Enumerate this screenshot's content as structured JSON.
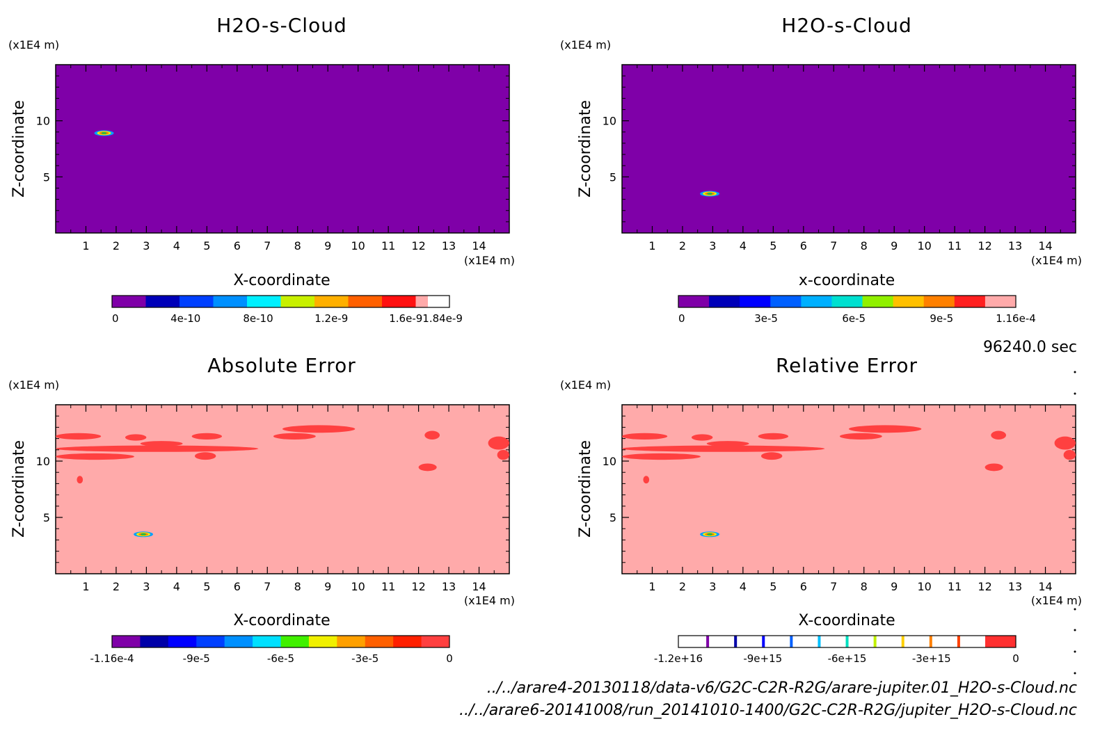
{
  "chart_data": [
    {
      "type": "heatmap",
      "title": "H2O-s-Cloud",
      "xlabel": "X-coordinate",
      "ylabel": "Z-coordinate",
      "x_unit": "(x1E4 m)",
      "y_unit": "(x1E4 m)",
      "xlim": [
        0,
        15
      ],
      "ylim": [
        0,
        15
      ],
      "x_ticks": [
        1,
        2,
        3,
        4,
        5,
        6,
        7,
        8,
        9,
        10,
        11,
        12,
        13,
        14
      ],
      "y_ticks": [
        5,
        10
      ],
      "background_value": 0,
      "features": [
        {
          "x": 1.6,
          "z": 8.9,
          "peak": 1.84e-09
        }
      ],
      "colorbar": {
        "tick_labels": [
          "0",
          "4e-10",
          "8e-10",
          "1.2e-9",
          "1.6e-91.84e-9"
        ],
        "colors": [
          "#7f00a8",
          "#0000b8",
          "#0040ff",
          "#0090ff",
          "#00f0ff",
          "#c8f000",
          "#ffb000",
          "#ff6000",
          "#ff1010",
          "#ffaaaa"
        ]
      }
    },
    {
      "type": "heatmap",
      "title": "H2O-s-Cloud",
      "xlabel": "x-coordinate",
      "ylabel": "Z-coordinate",
      "x_unit": "(x1E4 m)",
      "y_unit": "(x1E4 m)",
      "xlim": [
        0,
        15
      ],
      "ylim": [
        0,
        15
      ],
      "x_ticks": [
        1,
        2,
        3,
        4,
        5,
        6,
        7,
        8,
        9,
        10,
        11,
        12,
        13,
        14
      ],
      "y_ticks": [
        5,
        10
      ],
      "background_value": 0,
      "features": [
        {
          "x": 2.9,
          "z": 3.5,
          "peak": 0.000116
        }
      ],
      "colorbar": {
        "tick_labels": [
          "0",
          "3e-5",
          "6e-5",
          "9e-5",
          "1.16e-4"
        ],
        "colors": [
          "#7f00a8",
          "#0000b8",
          "#0000ff",
          "#0060ff",
          "#00b0ff",
          "#00e0d0",
          "#90f000",
          "#ffc000",
          "#ff8000",
          "#ff2020",
          "#ffaaaa"
        ]
      }
    },
    {
      "type": "heatmap",
      "title": "Absolute Error",
      "xlabel": "X-coordinate",
      "ylabel": "Z-coordinate",
      "x_unit": "(x1E4 m)",
      "y_unit": "(x1E4 m)",
      "xlim": [
        0,
        15
      ],
      "ylim": [
        0,
        15
      ],
      "x_ticks": [
        1,
        2,
        3,
        4,
        5,
        6,
        7,
        8,
        9,
        10,
        11,
        12,
        13,
        14
      ],
      "y_ticks": [
        5,
        10
      ],
      "background_value": 0,
      "features": [
        {
          "x": 2.9,
          "z": 3.5,
          "peak": -0.000116
        }
      ],
      "colorbar": {
        "tick_labels": [
          "-1.16e-4",
          "-9e-5",
          "-6e-5",
          "-3e-5",
          "0"
        ],
        "colors": [
          "#7f00a8",
          "#0000a8",
          "#0000ff",
          "#0040ff",
          "#0090ff",
          "#00e0ff",
          "#40f000",
          "#f0f000",
          "#ffa000",
          "#ff6000",
          "#ff2000",
          "#ff4040"
        ]
      }
    },
    {
      "type": "heatmap",
      "title": "Relative Error",
      "xlabel": "X-coordinate",
      "ylabel": "Z-coordinate",
      "x_unit": "(x1E4 m)",
      "y_unit": "(x1E4 m)",
      "xlim": [
        0,
        15
      ],
      "ylim": [
        0,
        15
      ],
      "x_ticks": [
        1,
        2,
        3,
        4,
        5,
        6,
        7,
        8,
        9,
        10,
        11,
        12,
        13,
        14
      ],
      "y_ticks": [
        5,
        10
      ],
      "background_value": 0,
      "features": [
        {
          "x": 2.9,
          "z": 3.5,
          "peak": -1.2e+16
        }
      ],
      "colorbar": {
        "tick_labels": [
          "-1.2e+16",
          "-9e+15",
          "-6e+15",
          "-3e+15",
          "0"
        ],
        "colors": [
          "#ffffff",
          "#7f00a8",
          "#0000a8",
          "#0000ff",
          "#0060ff",
          "#00c0ff",
          "#00e0c0",
          "#c0f000",
          "#ffd000",
          "#ff8000",
          "#ff4000",
          "#ff3030"
        ]
      }
    }
  ],
  "time_label": "96240.0 sec",
  "footer": {
    "line1": "../../arare4-20130118/data-v6/G2C-C2R-R2G/arare-jupiter.01_H2O-s-Cloud.nc",
    "line2": "../../arare6-20141008/run_20141010-1400/G2C-C2R-R2G/jupiter_H2O-s-Cloud.nc"
  },
  "colors": {
    "field_background_top": "#7f00a8",
    "error_background": "#ffaaaa",
    "error_patch": "#ff4040"
  }
}
